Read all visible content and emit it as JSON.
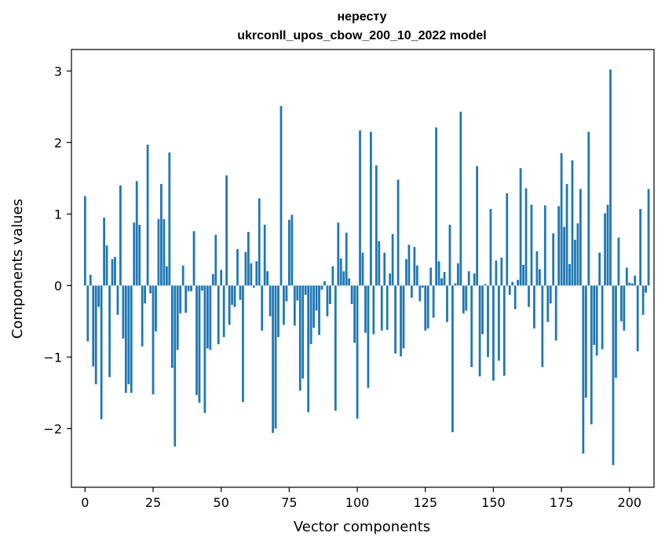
{
  "chart_data": {
    "type": "bar",
    "title_line1": "нересту",
    "title_line2": "ukrconll_upos_cbow_200_10_2022 model",
    "xlabel": "Vector components",
    "ylabel": "Components values",
    "xlim": [
      -5,
      209
    ],
    "ylim": [
      -2.82,
      3.3
    ],
    "xticks": [
      0,
      25,
      50,
      75,
      100,
      125,
      150,
      175,
      200
    ],
    "yticks": [
      -2,
      -1,
      0,
      1,
      2,
      3
    ],
    "xtick_labels": [
      "0",
      "25",
      "50",
      "75",
      "100",
      "125",
      "150",
      "175",
      "200"
    ],
    "ytick_labels": [
      "−2",
      "−1",
      "0",
      "1",
      "2",
      "3"
    ],
    "bar_color": "#1f77b4",
    "grid": false,
    "values": [
      1.25,
      -0.78,
      0.15,
      -1.13,
      -1.38,
      -0.3,
      -1.87,
      0.95,
      0.56,
      -1.28,
      0.37,
      0.4,
      -0.41,
      1.4,
      -0.74,
      -1.5,
      -1.38,
      -1.5,
      0.88,
      1.46,
      0.85,
      -0.85,
      -0.25,
      1.97,
      -0.11,
      -1.52,
      -0.64,
      0.93,
      1.42,
      0.93,
      0.27,
      1.86,
      -1.15,
      -2.25,
      -0.9,
      -0.39,
      0.28,
      -0.38,
      -0.08,
      -0.08,
      0.76,
      -1.53,
      -1.64,
      -0.07,
      -1.78,
      -0.88,
      -0.9,
      0.16,
      0.71,
      -0.82,
      0.22,
      -0.72,
      1.54,
      -0.55,
      -0.27,
      -0.3,
      0.51,
      -0.2,
      -1.63,
      0.47,
      0.75,
      0.31,
      -0.03,
      0.34,
      1.22,
      -0.63,
      0.85,
      0.2,
      -0.43,
      -2.06,
      -2.0,
      -0.72,
      2.51,
      -0.55,
      -0.22,
      0.92,
      0.99,
      -0.56,
      -0.21,
      -1.47,
      -1.3,
      -0.13,
      -1.77,
      -0.82,
      -0.59,
      -0.35,
      -0.69,
      -0.06,
      0.06,
      -0.43,
      -0.26,
      0.27,
      -1.75,
      0.88,
      0.38,
      0.2,
      0.74,
      0.1,
      -0.26,
      -0.8,
      -1.86,
      2.17,
      0.46,
      -0.66,
      -1.43,
      2.15,
      -0.68,
      1.68,
      0.62,
      -0.63,
      0.46,
      -0.62,
      0.17,
      0.72,
      -0.95,
      1.48,
      -0.99,
      -0.88,
      0.37,
      0.57,
      -0.17,
      0.54,
      0.28,
      -0.22,
      -0.03,
      -0.63,
      -0.6,
      0.25,
      -0.45,
      2.21,
      0.34,
      0.1,
      0.19,
      -0.51,
      0.85,
      -2.05,
      0.03,
      0.31,
      2.43,
      -0.39,
      -0.35,
      0.2,
      -1.14,
      0.17,
      1.67,
      -1.27,
      -0.68,
      0.02,
      -1.0,
      1.07,
      -1.33,
      0.35,
      -1.05,
      0.39,
      -1.26,
      1.29,
      -0.13,
      0.05,
      -0.33,
      0.08,
      1.64,
      0.29,
      1.36,
      -0.3,
      1.13,
      -0.6,
      0.48,
      0.23,
      -1.14,
      1.12,
      -0.51,
      -0.25,
      0.73,
      -0.77,
      1.11,
      1.85,
      0.82,
      1.42,
      0.3,
      1.75,
      0.64,
      0.87,
      1.35,
      -2.35,
      -1.57,
      2.15,
      -1.94,
      -0.83,
      -0.98,
      0.46,
      -0.89,
      1.01,
      1.13,
      3.02,
      -2.51,
      -1.29,
      0.67,
      -0.5,
      -0.63,
      0.25,
      0.04,
      0.03,
      0.14,
      -0.92,
      1.07,
      -0.41,
      -0.1,
      1.35
    ]
  }
}
